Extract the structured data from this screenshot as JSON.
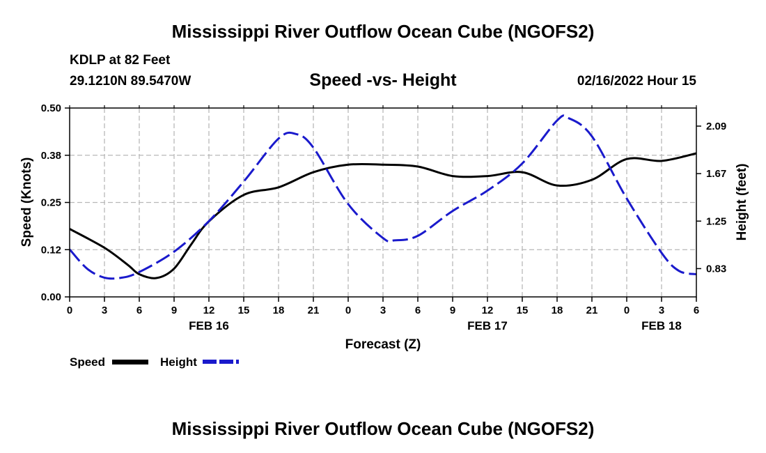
{
  "page": {
    "title_top": "Mississippi River Outflow Ocean Cube (NGOFS2)",
    "title_bottom": "Mississippi River Outflow Ocean Cube (NGOFS2)",
    "station": "KDLP at 82 Feet",
    "coords": "29.1210N  89.5470W",
    "subtitle": "Speed -vs- Height",
    "datetime": "02/16/2022 Hour 15"
  },
  "legend": {
    "speed_label": "Speed",
    "height_label": "Height"
  },
  "colors": {
    "speed": "#000000",
    "height": "#1a1acc",
    "grid": "#b8b8b8"
  },
  "chart_data": {
    "type": "line",
    "title": "Speed -vs- Height",
    "xlabel": "Forecast (Z)",
    "ylabel": "Speed (Knots)",
    "y2label": "Height (feet)",
    "x_range": [
      0,
      54
    ],
    "x_tick_labels": [
      "0",
      "3",
      "6",
      "9",
      "12",
      "15",
      "18",
      "21",
      "0",
      "3",
      "6",
      "9",
      "12",
      "15",
      "18",
      "21",
      "0",
      "3",
      "6"
    ],
    "day_labels": [
      {
        "label": "FEB 16",
        "x": 12
      },
      {
        "label": "FEB 17",
        "x": 36
      },
      {
        "label": "FEB 18",
        "x": 51
      }
    ],
    "ylim": [
      0,
      0.5
    ],
    "y_ticks": [
      {
        "value": 0.0,
        "label": "0.00"
      },
      {
        "value": 0.125,
        "label": "0.12"
      },
      {
        "value": 0.25,
        "label": "0.25"
      },
      {
        "value": 0.375,
        "label": "0.38"
      },
      {
        "value": 0.5,
        "label": "0.50"
      }
    ],
    "y2lim": [
      0.58,
      2.25
    ],
    "y2_ticks": [
      {
        "value": 0.83,
        "label": "0.83"
      },
      {
        "value": 1.25,
        "label": "1.25"
      },
      {
        "value": 1.67,
        "label": "1.67"
      },
      {
        "value": 2.09,
        "label": "2.09"
      }
    ],
    "series": [
      {
        "name": "Speed",
        "axis": "left",
        "style": "solid",
        "x": [
          0,
          3,
          5,
          6,
          7.5,
          9,
          10.5,
          12,
          15,
          18,
          21,
          24,
          27,
          30,
          33,
          36,
          39,
          42,
          45,
          48,
          51,
          54
        ],
        "y": [
          0.18,
          0.13,
          0.085,
          0.06,
          0.05,
          0.075,
          0.14,
          0.2,
          0.27,
          0.29,
          0.33,
          0.35,
          0.35,
          0.345,
          0.32,
          0.32,
          0.33,
          0.295,
          0.31,
          0.365,
          0.36,
          0.38
        ]
      },
      {
        "name": "Height",
        "axis": "right",
        "style": "dashed",
        "x": [
          0,
          1.5,
          3,
          4.5,
          6,
          9,
          12,
          15,
          18,
          19.5,
          21,
          24,
          27,
          28,
          30,
          33,
          36,
          39,
          42,
          43,
          45,
          48,
          51,
          52.5,
          54
        ],
        "y": [
          1.0,
          0.83,
          0.75,
          0.75,
          0.8,
          0.98,
          1.25,
          1.6,
          1.98,
          2.02,
          1.9,
          1.4,
          1.1,
          1.08,
          1.12,
          1.34,
          1.52,
          1.76,
          2.14,
          2.16,
          2.0,
          1.45,
          0.97,
          0.81,
          0.78
        ]
      }
    ]
  }
}
